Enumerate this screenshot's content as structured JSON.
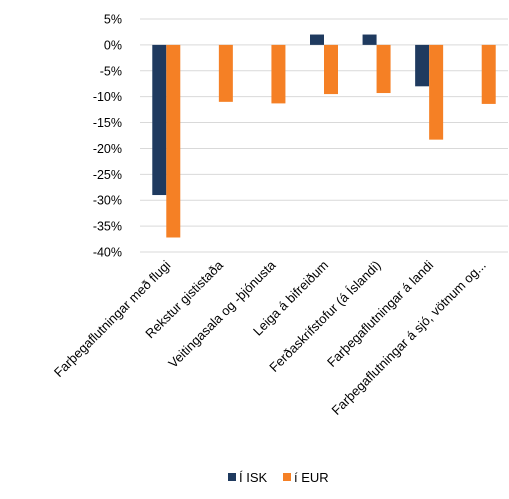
{
  "chart_data": {
    "type": "bar",
    "categories": [
      "Farþegaflutningar með flugi",
      "Rekstur gististaða",
      "Veitingasala og -þjónusta",
      "Leiga á bifreiðum",
      "Ferðaskrifstofur (á Íslandi)",
      "Farþegaflutningar á landi",
      "Farþegaflutningar á sjó, vötnum og..."
    ],
    "series": [
      {
        "name": "Í ISK",
        "color": "#1f3a5f",
        "values": [
          -29.0,
          0.0,
          0.0,
          2.0,
          2.0,
          -8.0,
          0.0
        ]
      },
      {
        "name": "í EUR",
        "color": "#f58025",
        "values": [
          -37.2,
          -11.0,
          -11.3,
          -9.5,
          -9.3,
          -18.3,
          -11.4
        ]
      }
    ],
    "y_ticks": [
      "5%",
      "0%",
      "-5%",
      "-10%",
      "-15%",
      "-20%",
      "-25%",
      "-30%",
      "-35%",
      "-40%"
    ],
    "ylim": [
      -40,
      5
    ],
    "grid": true,
    "legend_position": "bottom"
  }
}
